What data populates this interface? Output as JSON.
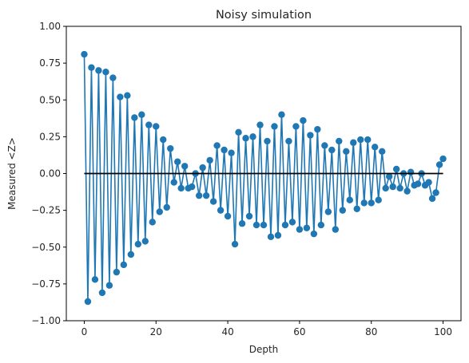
{
  "chart_data": {
    "type": "line",
    "title": "Noisy simulation",
    "xlabel": "Depth",
    "ylabel": "Measured <Z>",
    "xlim": [
      -5,
      105
    ],
    "ylim": [
      -1.0,
      1.0
    ],
    "xticks": [
      0,
      20,
      40,
      60,
      80,
      100
    ],
    "xtick_labels": [
      "0",
      "20",
      "40",
      "60",
      "80",
      "100"
    ],
    "yticks": [
      -1.0,
      -0.75,
      -0.5,
      -0.25,
      0.0,
      0.25,
      0.5,
      0.75,
      1.0
    ],
    "ytick_labels": [
      "−1.00",
      "−0.75",
      "−0.50",
      "−0.25",
      "0.00",
      "0.25",
      "0.50",
      "0.75",
      "1.00"
    ],
    "grid": false,
    "series": [
      {
        "color": "#1f77b4",
        "marker": "circle",
        "x": [
          0,
          1,
          2,
          3,
          4,
          5,
          6,
          7,
          8,
          9,
          10,
          11,
          12,
          13,
          14,
          15,
          16,
          17,
          18,
          19,
          20,
          21,
          22,
          23,
          24,
          25,
          26,
          27,
          28,
          29,
          30,
          31,
          32,
          33,
          34,
          35,
          36,
          37,
          38,
          39,
          40,
          41,
          42,
          43,
          44,
          45,
          46,
          47,
          48,
          49,
          50,
          51,
          52,
          53,
          54,
          55,
          56,
          57,
          58,
          59,
          60,
          61,
          62,
          63,
          64,
          65,
          66,
          67,
          68,
          69,
          70,
          71,
          72,
          73,
          74,
          75,
          76,
          77,
          78,
          79,
          80,
          81,
          82,
          83,
          84,
          85,
          86,
          87,
          88,
          89,
          90,
          91,
          92,
          93,
          94,
          95,
          96,
          97,
          98,
          99,
          100
        ],
        "y": [
          0.81,
          -0.87,
          0.72,
          -0.72,
          0.7,
          -0.81,
          0.69,
          -0.76,
          0.65,
          -0.67,
          0.52,
          -0.62,
          0.53,
          -0.55,
          0.38,
          -0.48,
          0.4,
          -0.46,
          0.33,
          -0.33,
          0.32,
          -0.26,
          0.23,
          -0.23,
          0.17,
          -0.06,
          0.08,
          -0.1,
          0.05,
          -0.1,
          -0.09,
          0.0,
          -0.15,
          0.04,
          -0.15,
          0.09,
          -0.19,
          0.19,
          -0.25,
          0.16,
          -0.29,
          0.14,
          -0.48,
          0.28,
          -0.34,
          0.24,
          -0.29,
          0.25,
          -0.35,
          0.33,
          -0.35,
          0.22,
          -0.43,
          0.32,
          -0.42,
          0.4,
          -0.35,
          0.22,
          -0.33,
          0.32,
          -0.38,
          0.36,
          -0.37,
          0.26,
          -0.41,
          0.3,
          -0.35,
          0.19,
          -0.26,
          0.16,
          -0.38,
          0.22,
          -0.25,
          0.15,
          -0.18,
          0.21,
          -0.24,
          0.23,
          -0.2,
          0.23,
          -0.2,
          0.18,
          -0.18,
          0.15,
          -0.1,
          -0.02,
          -0.09,
          0.03,
          -0.1,
          0.0,
          -0.12,
          0.01,
          -0.08,
          -0.07,
          0.0,
          -0.08,
          -0.06,
          -0.17,
          -0.13,
          0.06,
          0.1
        ]
      },
      {
        "color": "#000000",
        "marker": "none",
        "x": [
          0,
          100
        ],
        "y": [
          0.0,
          0.0
        ]
      }
    ]
  }
}
